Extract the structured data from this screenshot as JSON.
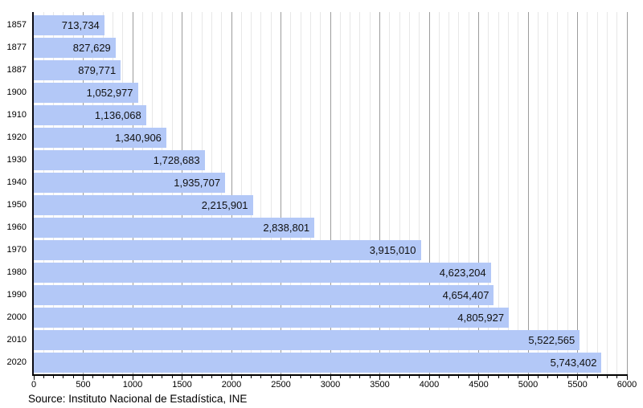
{
  "source_note": "Source: Instituto Nacional de Estadística, INE",
  "colors": {
    "bar_fill": "#b3c8f7",
    "bar_label": "#111111",
    "grid_minor": "#e7e7e7",
    "grid_major": "#9c9c9c",
    "axis": "#000000",
    "background": "#ffffff"
  },
  "chart_data": {
    "type": "bar",
    "orientation": "horizontal",
    "title": "",
    "xlabel": "",
    "ylabel": "",
    "categories": [
      "1857",
      "1877",
      "1887",
      "1900",
      "1910",
      "1920",
      "1930",
      "1940",
      "1950",
      "1960",
      "1970",
      "1980",
      "1990",
      "2000",
      "2010",
      "2020"
    ],
    "values": [
      713734,
      827629,
      879771,
      1052977,
      1136068,
      1340906,
      1728683,
      1935707,
      2215901,
      2838801,
      3915010,
      4623204,
      4654407,
      4805927,
      5522565,
      5743402
    ],
    "value_labels": [
      "713,734",
      "827,629",
      "879,771",
      "1,052,977",
      "1,136,068",
      "1,340,906",
      "1,728,683",
      "1,935,707",
      "2,215,901",
      "2,838,801",
      "3,915,010",
      "4,623,204",
      "4,654,407",
      "4,805,927",
      "5,522,565",
      "5,743,402"
    ],
    "x_axis": {
      "unit": "thousands",
      "min": 0,
      "max": 6000,
      "major_tick_interval": 500,
      "minor_tick_interval": 100,
      "tick_labels": [
        "0",
        "500",
        "1000",
        "1500",
        "2000",
        "2500",
        "3000",
        "3500",
        "4000",
        "4500",
        "5000",
        "5500",
        "6000"
      ]
    },
    "grid": "vertical, minor every 100 and major every 500",
    "legend": "none",
    "bars_value_labels_position": "inside-right"
  }
}
